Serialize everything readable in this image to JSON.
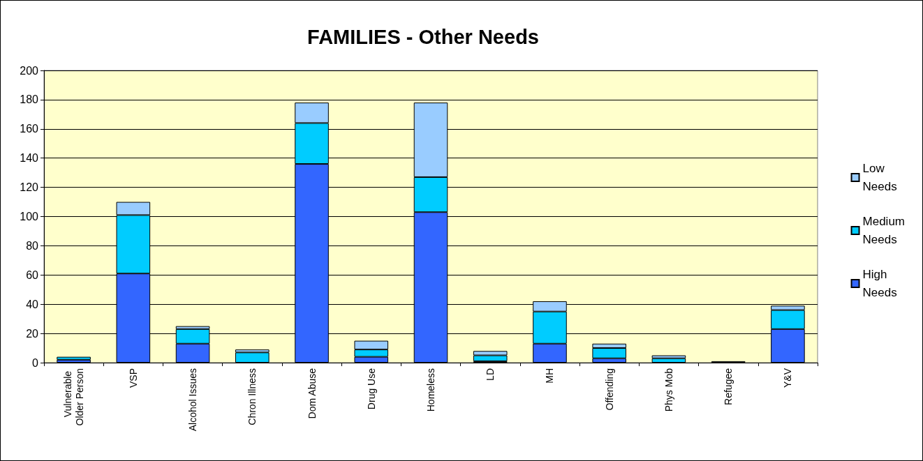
{
  "chart_data": {
    "type": "bar",
    "title": "FAMILIES - Other Needs",
    "stacked": true,
    "categories": [
      "Vulnerable Older Person",
      "VSP",
      "Alcohol Issues",
      "Chron Illness",
      "Dom Abuse",
      "Drug Use",
      "Homeless",
      "LD",
      "MH",
      "Offending",
      "Phys Mob",
      "Refugee",
      "Y&V"
    ],
    "series": [
      {
        "name": "High Needs",
        "color": "#3366ff",
        "values": [
          2,
          61,
          13,
          0,
          136,
          4,
          103,
          1,
          13,
          3,
          0,
          0,
          23
        ]
      },
      {
        "name": "Medium Needs",
        "color": "#00ccff",
        "values": [
          2,
          40,
          10,
          7,
          28,
          5,
          24,
          4,
          22,
          7,
          3,
          0,
          13
        ]
      },
      {
        "name": "Low Needs",
        "color": "#99ccff",
        "values": [
          0,
          9,
          2,
          2,
          14,
          6,
          51,
          3,
          7,
          3,
          2,
          1,
          3
        ]
      }
    ],
    "ylim": [
      0,
      200
    ],
    "yticks": [
      0,
      20,
      40,
      60,
      80,
      100,
      120,
      140,
      160,
      180,
      200
    ],
    "grid": "y",
    "legend": "right"
  }
}
